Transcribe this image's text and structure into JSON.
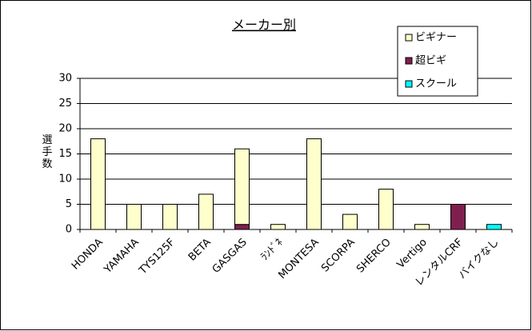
{
  "chart_data": {
    "type": "stacked_bar",
    "title": "メーカー別",
    "y_label": "選手数",
    "categories": [
      "HONDA",
      "YAMAHA",
      "TYS125F",
      "BETA",
      "GASGAS",
      "ﾗﾝﾄﾞﾈ",
      "MONTESA",
      "SCORPA",
      "SHERCO",
      "Vertigo",
      "レンタルCRF",
      "バイクなし"
    ],
    "series": [
      {
        "name": "ビギナー",
        "color": "#ffffcc",
        "values": [
          18,
          5,
          5,
          7,
          15,
          1,
          18,
          3,
          8,
          1,
          0,
          0
        ]
      },
      {
        "name": "超ビギ",
        "color": "#7f1f4f",
        "values": [
          0,
          0,
          0,
          0,
          1,
          0,
          0,
          0,
          0,
          0,
          5,
          0
        ]
      },
      {
        "name": "スクール",
        "color": "#00ffff",
        "values": [
          0,
          0,
          0,
          0,
          0,
          0,
          0,
          0,
          0,
          0,
          0,
          1
        ]
      }
    ],
    "ylim": [
      0,
      30
    ],
    "yticks": [
      0,
      5,
      10,
      15,
      20,
      25,
      30
    ],
    "grid": true,
    "legend": "top-right"
  }
}
